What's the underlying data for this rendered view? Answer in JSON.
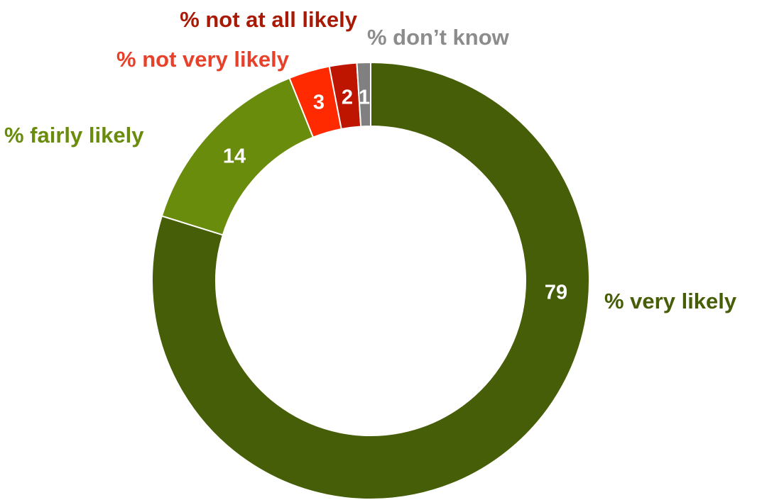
{
  "chart_data": {
    "type": "donut",
    "start": "top",
    "direction": "clockwise",
    "series": [
      {
        "name": "% very likely",
        "value": 79,
        "color": "#465E07"
      },
      {
        "name": "% fairly likely",
        "value": 14,
        "color": "#6A8C0C"
      },
      {
        "name": "% not very likely",
        "value": 3,
        "color": "#FF2A00"
      },
      {
        "name": "% not at all likely",
        "value": 2,
        "color": "#BE1500"
      },
      {
        "name": "% don’t know",
        "value": 1,
        "color": "#808080"
      }
    ],
    "label_colors": {
      "% very likely": "#465E07",
      "% fairly likely": "#6A8C0C",
      "% not very likely": "#E8412B",
      "% not at all likely": "#A81A06",
      "% don’t know": "#8C8C8C"
    }
  }
}
